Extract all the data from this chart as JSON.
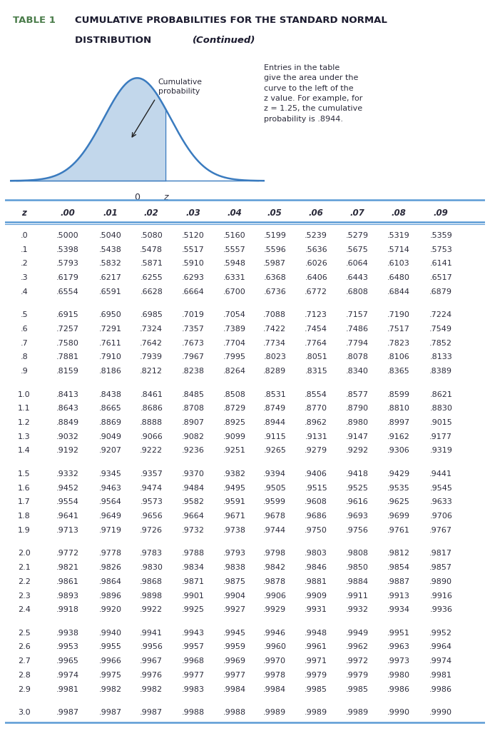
{
  "title_table": "TABLE 1",
  "title_main": "CUMULATIVE PROBABILITIES FOR THE STANDARD NORMAL",
  "title_dist": "DISTRIBUTION ",
  "title_cont": "(Continued)",
  "title_color": "#4a7c4a",
  "title_main_color": "#1a1a2e",
  "header_cols": [
    "z",
    ".00",
    ".01",
    ".02",
    ".03",
    ".04",
    ".05",
    ".06",
    ".07",
    ".08",
    ".09"
  ],
  "annotation_text": "Entries in the table\ngive the area under the\ncurve to the left of the\nz value. For example, for\nz = 1.25, the cumulative\nprobability is .8944.",
  "cumulative_label": "Cumulative\nprobability",
  "rows": [
    [
      ".0",
      ".5000",
      ".5040",
      ".5080",
      ".5120",
      ".5160",
      ".5199",
      ".5239",
      ".5279",
      ".5319",
      ".5359"
    ],
    [
      ".1",
      ".5398",
      ".5438",
      ".5478",
      ".5517",
      ".5557",
      ".5596",
      ".5636",
      ".5675",
      ".5714",
      ".5753"
    ],
    [
      ".2",
      ".5793",
      ".5832",
      ".5871",
      ".5910",
      ".5948",
      ".5987",
      ".6026",
      ".6064",
      ".6103",
      ".6141"
    ],
    [
      ".3",
      ".6179",
      ".6217",
      ".6255",
      ".6293",
      ".6331",
      ".6368",
      ".6406",
      ".6443",
      ".6480",
      ".6517"
    ],
    [
      ".4",
      ".6554",
      ".6591",
      ".6628",
      ".6664",
      ".6700",
      ".6736",
      ".6772",
      ".6808",
      ".6844",
      ".6879"
    ],
    [
      ".5",
      ".6915",
      ".6950",
      ".6985",
      ".7019",
      ".7054",
      ".7088",
      ".7123",
      ".7157",
      ".7190",
      ".7224"
    ],
    [
      ".6",
      ".7257",
      ".7291",
      ".7324",
      ".7357",
      ".7389",
      ".7422",
      ".7454",
      ".7486",
      ".7517",
      ".7549"
    ],
    [
      ".7",
      ".7580",
      ".7611",
      ".7642",
      ".7673",
      ".7704",
      ".7734",
      ".7764",
      ".7794",
      ".7823",
      ".7852"
    ],
    [
      ".8",
      ".7881",
      ".7910",
      ".7939",
      ".7967",
      ".7995",
      ".8023",
      ".8051",
      ".8078",
      ".8106",
      ".8133"
    ],
    [
      ".9",
      ".8159",
      ".8186",
      ".8212",
      ".8238",
      ".8264",
      ".8289",
      ".8315",
      ".8340",
      ".8365",
      ".8389"
    ],
    [
      "1.0",
      ".8413",
      ".8438",
      ".8461",
      ".8485",
      ".8508",
      ".8531",
      ".8554",
      ".8577",
      ".8599",
      ".8621"
    ],
    [
      "1.1",
      ".8643",
      ".8665",
      ".8686",
      ".8708",
      ".8729",
      ".8749",
      ".8770",
      ".8790",
      ".8810",
      ".8830"
    ],
    [
      "1.2",
      ".8849",
      ".8869",
      ".8888",
      ".8907",
      ".8925",
      ".8944",
      ".8962",
      ".8980",
      ".8997",
      ".9015"
    ],
    [
      "1.3",
      ".9032",
      ".9049",
      ".9066",
      ".9082",
      ".9099",
      ".9115",
      ".9131",
      ".9147",
      ".9162",
      ".9177"
    ],
    [
      "1.4",
      ".9192",
      ".9207",
      ".9222",
      ".9236",
      ".9251",
      ".9265",
      ".9279",
      ".9292",
      ".9306",
      ".9319"
    ],
    [
      "1.5",
      ".9332",
      ".9345",
      ".9357",
      ".9370",
      ".9382",
      ".9394",
      ".9406",
      ".9418",
      ".9429",
      ".9441"
    ],
    [
      "1.6",
      ".9452",
      ".9463",
      ".9474",
      ".9484",
      ".9495",
      ".9505",
      ".9515",
      ".9525",
      ".9535",
      ".9545"
    ],
    [
      "1.7",
      ".9554",
      ".9564",
      ".9573",
      ".9582",
      ".9591",
      ".9599",
      ".9608",
      ".9616",
      ".9625",
      ".9633"
    ],
    [
      "1.8",
      ".9641",
      ".9649",
      ".9656",
      ".9664",
      ".9671",
      ".9678",
      ".9686",
      ".9693",
      ".9699",
      ".9706"
    ],
    [
      "1.9",
      ".9713",
      ".9719",
      ".9726",
      ".9732",
      ".9738",
      ".9744",
      ".9750",
      ".9756",
      ".9761",
      ".9767"
    ],
    [
      "2.0",
      ".9772",
      ".9778",
      ".9783",
      ".9788",
      ".9793",
      ".9798",
      ".9803",
      ".9808",
      ".9812",
      ".9817"
    ],
    [
      "2.1",
      ".9821",
      ".9826",
      ".9830",
      ".9834",
      ".9838",
      ".9842",
      ".9846",
      ".9850",
      ".9854",
      ".9857"
    ],
    [
      "2.2",
      ".9861",
      ".9864",
      ".9868",
      ".9871",
      ".9875",
      ".9878",
      ".9881",
      ".9884",
      ".9887",
      ".9890"
    ],
    [
      "2.3",
      ".9893",
      ".9896",
      ".9898",
      ".9901",
      ".9904",
      ".9906",
      ".9909",
      ".9911",
      ".9913",
      ".9916"
    ],
    [
      "2.4",
      ".9918",
      ".9920",
      ".9922",
      ".9925",
      ".9927",
      ".9929",
      ".9931",
      ".9932",
      ".9934",
      ".9936"
    ],
    [
      "2.5",
      ".9938",
      ".9940",
      ".9941",
      ".9943",
      ".9945",
      ".9946",
      ".9948",
      ".9949",
      ".9951",
      ".9952"
    ],
    [
      "2.6",
      ".9953",
      ".9955",
      ".9956",
      ".9957",
      ".9959",
      ".9960",
      ".9961",
      ".9962",
      ".9963",
      ".9964"
    ],
    [
      "2.7",
      ".9965",
      ".9966",
      ".9967",
      ".9968",
      ".9969",
      ".9970",
      ".9971",
      ".9972",
      ".9973",
      ".9974"
    ],
    [
      "2.8",
      ".9974",
      ".9975",
      ".9976",
      ".9977",
      ".9977",
      ".9978",
      ".9979",
      ".9979",
      ".9980",
      ".9981"
    ],
    [
      "2.9",
      ".9981",
      ".9982",
      ".9982",
      ".9983",
      ".9984",
      ".9984",
      ".9985",
      ".9985",
      ".9986",
      ".9986"
    ],
    [
      "3.0",
      ".9987",
      ".9987",
      ".9987",
      ".9988",
      ".9988",
      ".9989",
      ".9989",
      ".9989",
      ".9990",
      ".9990"
    ]
  ],
  "group_breaks_after": [
    4,
    9,
    14,
    19,
    24,
    29
  ],
  "bg_color": "#ffffff",
  "line_color": "#5b9bd5",
  "text_color": "#2b2b3b",
  "header_color": "#2b2b3b",
  "curve_fill_color": "#b8d0e8",
  "curve_line_color": "#3a7bbf"
}
